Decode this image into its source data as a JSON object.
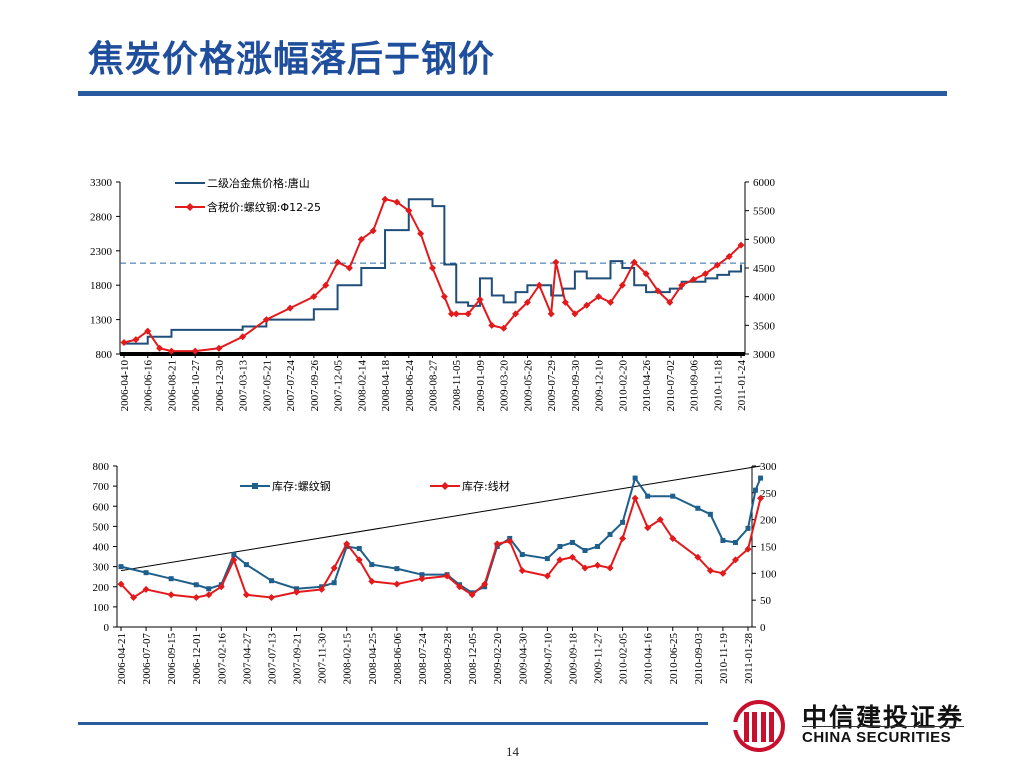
{
  "page": {
    "title": "焦炭价格涨幅落后于钢价",
    "page_number": "14",
    "logo_cn": "中信建投证券",
    "logo_en": "CHINA SECURITIES"
  },
  "colors": {
    "title": "#1f4e9c",
    "coke": "#1f4e79",
    "rebar_price": "#e31a1c",
    "inv_rebar": "#1f5f8b",
    "inv_wire": "#e31a1c",
    "logo": "#c8102e"
  },
  "chart_data": [
    {
      "type": "line",
      "x_tick_labels": [
        "2006-04-10",
        "2006-06-16",
        "2006-08-21",
        "2006-10-27",
        "2006-12-30",
        "2007-03-13",
        "2007-05-21",
        "2007-07-24",
        "2007-09-26",
        "2007-12-05",
        "2008-02-14",
        "2008-04-18",
        "2008-06-24",
        "2008-08-27",
        "2008-11-05",
        "2009-01-09",
        "2009-03-20",
        "2009-05-26",
        "2009-07-29",
        "2009-09-30",
        "2009-12-10",
        "2010-02-20",
        "2010-04-26",
        "2010-07-02",
        "2010-09-06",
        "2010-11-18",
        "2011-01-24"
      ],
      "left_axis": {
        "ylim": [
          800,
          3300
        ],
        "ticks": [
          "800",
          "1300",
          "1800",
          "2300",
          "2800",
          "3300"
        ]
      },
      "right_axis": {
        "ylim": [
          3000,
          6000
        ],
        "ticks": [
          "3000",
          "3500",
          "4000",
          "4500",
          "5000",
          "5500",
          "6000"
        ]
      },
      "reference_line": {
        "axis": "left",
        "value": 2120,
        "style": "dashed"
      },
      "series": [
        {
          "name": "二级冶金焦价格:唐山",
          "axis": "left",
          "marker": "none",
          "x_index": [
            0,
            1,
            2,
            3,
            4,
            5,
            6,
            7,
            8,
            9,
            10,
            11,
            12,
            12.4,
            13,
            13.5,
            14,
            14.5,
            15,
            15.5,
            16,
            16.5,
            17,
            17.5,
            18,
            18.5,
            19,
            19.5,
            20,
            20.5,
            21,
            21.5,
            22,
            22.5,
            23,
            23.5,
            24,
            24.5,
            25,
            25.5,
            26
          ],
          "values": [
            950,
            1050,
            1150,
            1150,
            1150,
            1200,
            1300,
            1300,
            1450,
            1800,
            2050,
            2600,
            3050,
            3050,
            2950,
            2100,
            1550,
            1500,
            1900,
            1650,
            1550,
            1700,
            1800,
            1800,
            1650,
            1750,
            2000,
            1900,
            1900,
            2150,
            2050,
            1800,
            1700,
            1700,
            1750,
            1850,
            1850,
            1900,
            1950,
            2000,
            2100
          ]
        },
        {
          "name": "含税价:螺纹钢:Φ12-25",
          "axis": "right",
          "marker": "diamond",
          "x_index": [
            0,
            0.5,
            1,
            1.5,
            2,
            3,
            4,
            5,
            6,
            7,
            8,
            8.5,
            9,
            9.5,
            10,
            10.5,
            11,
            11.5,
            12,
            12.5,
            13,
            13.5,
            13.8,
            14,
            14.5,
            15,
            15.5,
            16,
            16.5,
            17,
            17.5,
            18,
            18.2,
            18.6,
            19,
            19.5,
            20,
            20.5,
            21,
            21.5,
            22,
            22.5,
            23,
            23.5,
            24,
            24.5,
            25,
            25.5,
            26
          ],
          "values": [
            3200,
            3250,
            3400,
            3100,
            3050,
            3050,
            3100,
            3300,
            3600,
            3800,
            4000,
            4200,
            4600,
            4500,
            5000,
            5150,
            5700,
            5650,
            5500,
            5100,
            4500,
            4000,
            3700,
            3700,
            3700,
            3950,
            3500,
            3450,
            3700,
            3900,
            4200,
            3700,
            4600,
            3900,
            3700,
            3850,
            4000,
            3900,
            4200,
            4600,
            4400,
            4100,
            3900,
            4200,
            4300,
            4400,
            4550,
            4700,
            4900
          ]
        }
      ]
    },
    {
      "type": "line",
      "x_tick_labels": [
        "2006-04-21",
        "2006-07-07",
        "2006-09-15",
        "2006-12-01",
        "2007-02-16",
        "2007-04-27",
        "2007-07-13",
        "2007-09-21",
        "2007-11-30",
        "2008-02-15",
        "2008-04-25",
        "2008-06-06",
        "2008-07-24",
        "2008-09-28",
        "2008-12-05",
        "2009-02-20",
        "2009-04-30",
        "2009-07-10",
        "2009-09-18",
        "2009-11-27",
        "2010-02-05",
        "2010-04-16",
        "2010-06-25",
        "2010-09-03",
        "2010-11-19",
        "2011-01-28"
      ],
      "left_axis": {
        "ylim": [
          0,
          800
        ],
        "ticks": [
          "0",
          "100",
          "200",
          "300",
          "400",
          "500",
          "600",
          "700",
          "800"
        ]
      },
      "right_axis": {
        "ylim": [
          0,
          300
        ],
        "ticks": [
          "0",
          "50",
          "100",
          "150",
          "200",
          "250",
          "300"
        ]
      },
      "trend_line": {
        "axis": "left",
        "from": [
          0,
          280
        ],
        "to": [
          25.5,
          800
        ]
      },
      "series": [
        {
          "name": "库存:螺纹钢",
          "axis": "left",
          "marker": "square",
          "x_index": [
            0,
            1,
            2,
            3,
            3.5,
            4,
            4.5,
            5,
            6,
            7,
            8,
            8.5,
            9,
            9.5,
            10,
            11,
            12,
            13,
            13.5,
            14,
            14.5,
            15,
            15.5,
            16,
            17,
            17.5,
            18,
            18.5,
            19,
            19.5,
            20,
            20.5,
            21,
            22,
            23,
            23.5,
            24,
            24.5,
            25,
            25.3,
            25.5
          ],
          "values": [
            300,
            270,
            240,
            210,
            190,
            210,
            360,
            310,
            230,
            190,
            200,
            220,
            400,
            390,
            310,
            290,
            260,
            260,
            210,
            170,
            200,
            400,
            440,
            360,
            340,
            400,
            420,
            380,
            400,
            460,
            520,
            740,
            650,
            650,
            590,
            560,
            430,
            420,
            490,
            680,
            740
          ]
        },
        {
          "name": "库存:线材",
          "axis": "right",
          "marker": "diamond",
          "x_index": [
            0,
            0.5,
            1,
            2,
            3,
            3.5,
            4,
            4.5,
            5,
            6,
            7,
            8,
            8.5,
            9,
            9.5,
            10,
            11,
            12,
            13,
            13.5,
            14,
            14.5,
            15,
            15.5,
            16,
            17,
            17.5,
            18,
            18.5,
            19,
            19.5,
            20,
            20.5,
            21,
            21.5,
            22,
            23,
            23.5,
            24,
            24.5,
            25,
            25.5
          ],
          "values": [
            80,
            55,
            70,
            60,
            55,
            60,
            75,
            125,
            60,
            55,
            65,
            70,
            110,
            155,
            125,
            85,
            80,
            90,
            95,
            75,
            60,
            80,
            155,
            160,
            105,
            95,
            125,
            130,
            110,
            115,
            110,
            165,
            240,
            185,
            200,
            165,
            130,
            105,
            100,
            125,
            145,
            240
          ]
        }
      ]
    }
  ]
}
